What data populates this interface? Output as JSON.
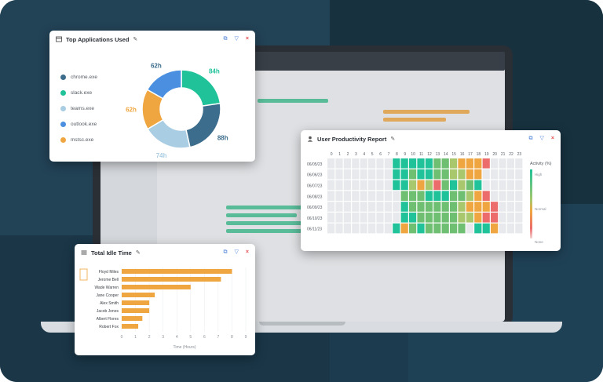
{
  "apps_card": {
    "title": "Top Applications Used",
    "legend": [
      {
        "label": "chrome.exe",
        "color": "#3d6d8c"
      },
      {
        "label": "slack.exe",
        "color": "#20c29a"
      },
      {
        "label": "teams.exe",
        "color": "#a9cde3"
      },
      {
        "label": "outlook.exe",
        "color": "#4a8fe0"
      },
      {
        "label": "mstsc.exe",
        "color": "#f0a640"
      }
    ]
  },
  "productivity_card": {
    "title": "User Productivity Report",
    "legend_title": "Activity (%)",
    "legend_high": "High",
    "legend_normal": "Normal",
    "legend_none": "None"
  },
  "idle_card": {
    "title": "Total Idle Time",
    "xlabel": "Time (Hours)"
  },
  "chart_data": [
    {
      "type": "pie",
      "labels": [
        "slack.exe",
        "chrome.exe",
        "teams.exe",
        "mstsc.exe",
        "outlook.exe"
      ],
      "values": [
        84,
        88,
        74,
        62,
        62
      ],
      "value_labels": [
        "84h",
        "88h",
        "74h",
        "62h",
        "62h"
      ],
      "colors": [
        "#20c29a",
        "#3d6d8c",
        "#a9cde3",
        "#f0a640",
        "#4a8fe0"
      ],
      "label_colors": [
        "#20c29a",
        "#3d6d8c",
        "#a9cde3",
        "#f0a640",
        "#3d6d8c"
      ]
    },
    {
      "type": "heatmap",
      "x": [
        "0",
        "1",
        "2",
        "3",
        "4",
        "5",
        "6",
        "7",
        "8",
        "9",
        "10",
        "11",
        "12",
        "13",
        "14",
        "15",
        "16",
        "17",
        "18",
        "19",
        "20",
        "21",
        "22",
        "23"
      ],
      "y": [
        "06/05/23",
        "06/06/23",
        "06/07/23",
        "06/08/23",
        "06/09/23",
        "06/10/23",
        "06/11/23"
      ],
      "levels": [
        [
          0,
          0,
          0,
          0,
          0,
          0,
          0,
          0,
          5,
          5,
          5,
          5,
          5,
          4,
          4,
          3,
          2,
          2,
          2,
          1,
          0,
          0,
          0,
          0
        ],
        [
          0,
          0,
          0,
          0,
          0,
          0,
          0,
          0,
          5,
          5,
          4,
          5,
          5,
          4,
          4,
          3,
          3,
          2,
          2,
          0,
          0,
          0,
          0,
          0
        ],
        [
          0,
          0,
          0,
          0,
          0,
          0,
          0,
          0,
          5,
          5,
          3,
          2,
          3,
          1,
          4,
          5,
          3,
          4,
          5,
          0,
          0,
          0,
          0,
          0
        ],
        [
          0,
          0,
          0,
          0,
          0,
          0,
          0,
          0,
          0,
          4,
          4,
          4,
          5,
          5,
          5,
          4,
          4,
          3,
          2,
          1,
          0,
          0,
          0,
          0
        ],
        [
          0,
          0,
          0,
          0,
          0,
          0,
          0,
          0,
          0,
          5,
          4,
          4,
          4,
          4,
          4,
          4,
          3,
          2,
          2,
          2,
          1,
          0,
          0,
          0
        ],
        [
          0,
          0,
          0,
          0,
          0,
          0,
          0,
          0,
          0,
          5,
          5,
          4,
          4,
          4,
          4,
          4,
          3,
          3,
          2,
          1,
          1,
          0,
          0,
          0
        ],
        [
          0,
          0,
          0,
          0,
          0,
          0,
          0,
          0,
          5,
          2,
          4,
          5,
          4,
          4,
          4,
          4,
          4,
          0,
          5,
          5,
          2,
          0,
          0,
          0
        ]
      ],
      "colors": [
        "#e7e9ec",
        "#ec6b6b",
        "#f0a640",
        "#a9c76c",
        "#6fbf73",
        "#20c29a"
      ]
    },
    {
      "type": "bar",
      "orientation": "horizontal",
      "categories": [
        "Floyd Miles",
        "Jerome Bell",
        "Wade Warren",
        "Jane Cooper",
        "Alex Smith",
        "Jacob Jones",
        "Albert Flores",
        "Robert Fox"
      ],
      "values": [
        8.0,
        7.2,
        5.0,
        2.4,
        2.0,
        2.0,
        1.5,
        1.2
      ],
      "xticks": [
        "0",
        "1",
        "2",
        "3",
        "4",
        "5",
        "6",
        "7",
        "8",
        "9"
      ],
      "xlim": [
        0,
        9
      ],
      "color": "#f0a640"
    }
  ]
}
